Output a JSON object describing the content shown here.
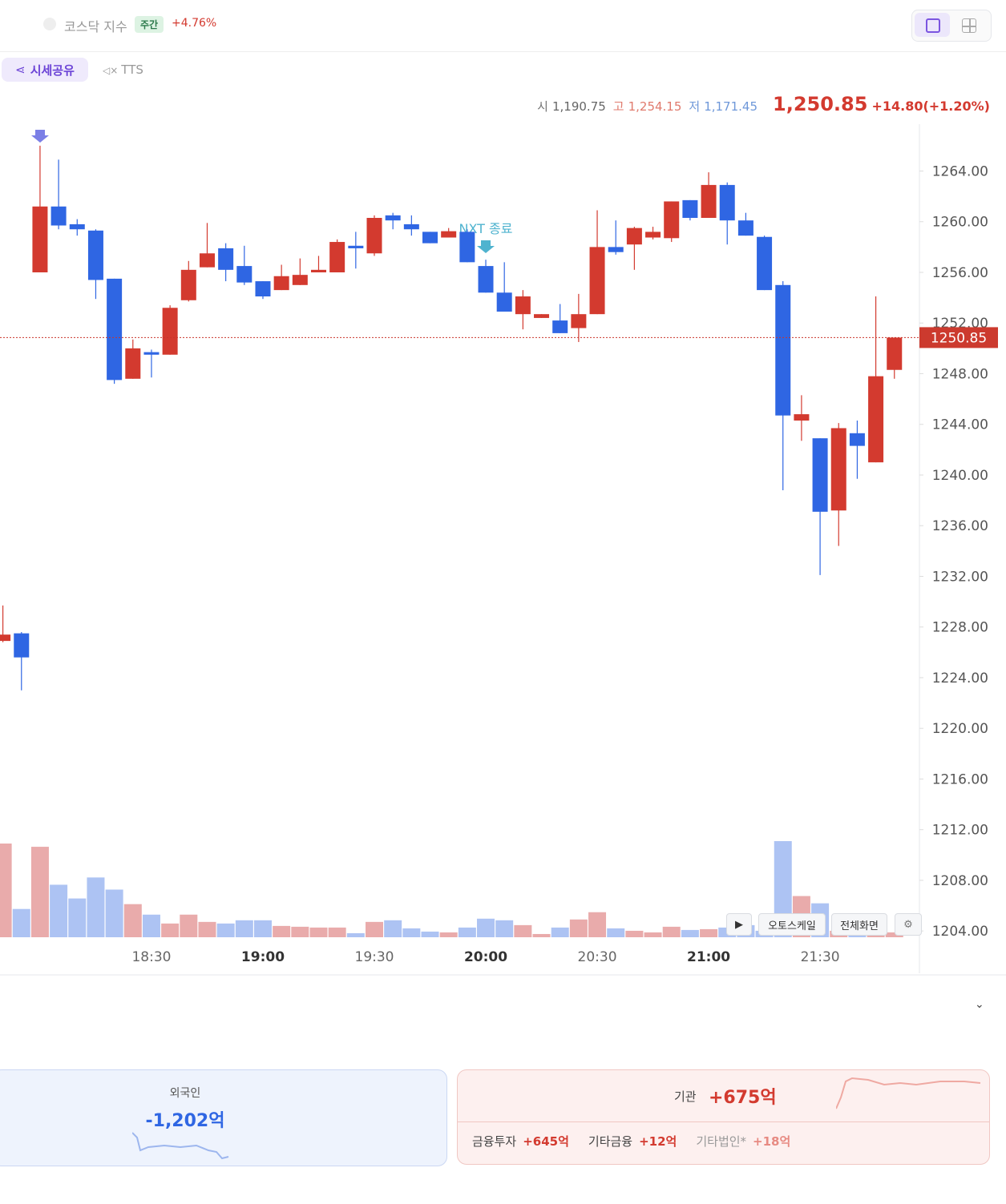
{
  "header": {
    "title": "코스닥 지수",
    "badge": "주간",
    "change": "+4.76%"
  },
  "toolbar": {
    "share": "시세공유",
    "tts": "TTS"
  },
  "quote": {
    "open_label": "시",
    "open": "1,190.75",
    "high_label": "고",
    "high": "1,254.15",
    "low_label": "저",
    "low": "1,171.45",
    "price": "1,250.85",
    "change": "+14.80(+1.20%)"
  },
  "chart_data": {
    "type": "candlestick",
    "categories": [
      null,
      null,
      null,
      null,
      null,
      null,
      null,
      null,
      "18:30",
      null,
      null,
      null,
      null,
      null,
      "19:00",
      null,
      null,
      null,
      null,
      null,
      "19:30",
      null,
      null,
      null,
      null,
      null,
      "20:00",
      null,
      null,
      null,
      null,
      null,
      "20:30",
      null,
      null,
      null,
      null,
      null,
      "21:00",
      null,
      null,
      null,
      null,
      null,
      "21:30",
      null,
      null,
      null,
      null
    ],
    "open": [
      1226.9,
      1227.5,
      1256.0,
      1261.2,
      1259.8,
      1259.3,
      1255.5,
      1247.6,
      1249.7,
      1249.5,
      1253.8,
      1256.4,
      1257.9,
      1256.5,
      1255.3,
      1254.6,
      1255.0,
      1256.0,
      1256.0,
      1258.1,
      1257.5,
      1260.5,
      1259.8,
      1259.2,
      1258.75,
      1259.2,
      1256.5,
      1254.4,
      1252.7,
      1252.4,
      1252.2,
      1251.6,
      1252.7,
      1258.0,
      1258.2,
      1258.75,
      1258.7,
      1261.7,
      1260.3,
      1262.9,
      1260.1,
      1258.8,
      1255.0,
      1244.3,
      1242.9,
      1237.2,
      1243.3,
      1241.0,
      1248.3
    ],
    "high": [
      1229.7,
      1227.6,
      1266.0,
      1264.9,
      1260.2,
      1259.4,
      1255.5,
      1250.7,
      1249.9,
      1253.4,
      1256.9,
      1259.9,
      1258.3,
      1258.1,
      1255.3,
      1256.6,
      1257.1,
      1257.3,
      1258.6,
      1259.2,
      1260.5,
      1260.7,
      1260.5,
      1259.2,
      1259.5,
      1259.4,
      1257.0,
      1256.8,
      1254.6,
      1252.7,
      1253.5,
      1254.3,
      1260.9,
      1260.1,
      1259.6,
      1259.6,
      1261.6,
      1261.7,
      1263.9,
      1263.1,
      1260.7,
      1258.9,
      1255.3,
      1246.3,
      1242.9,
      1244.1,
      1244.3,
      1254.1,
      1250.85
    ],
    "low": [
      1226.8,
      1223.0,
      1256.0,
      1259.4,
      1258.9,
      1253.9,
      1247.2,
      1247.6,
      1247.7,
      1249.5,
      1253.7,
      1256.4,
      1255.3,
      1255.0,
      1253.9,
      1254.6,
      1255.0,
      1256.0,
      1256.0,
      1256.3,
      1257.3,
      1259.4,
      1258.9,
      1258.3,
      1258.75,
      1256.8,
      1254.4,
      1252.9,
      1251.5,
      1252.4,
      1251.2,
      1250.5,
      1252.7,
      1257.4,
      1256.2,
      1258.6,
      1258.4,
      1260.1,
      1260.3,
      1258.2,
      1258.9,
      1254.6,
      1238.8,
      1242.7,
      1232.1,
      1234.4,
      1239.7,
      1241.0,
      1247.6
    ],
    "close": [
      1227.4,
      1225.6,
      1261.2,
      1259.7,
      1259.4,
      1255.4,
      1247.5,
      1250.0,
      1249.5,
      1253.2,
      1256.2,
      1257.5,
      1256.2,
      1255.2,
      1254.1,
      1255.7,
      1255.8,
      1256.2,
      1258.4,
      1257.9,
      1260.3,
      1260.1,
      1259.4,
      1258.3,
      1259.25,
      1256.8,
      1254.4,
      1252.9,
      1254.1,
      1252.7,
      1251.2,
      1252.7,
      1258.0,
      1257.6,
      1259.5,
      1259.2,
      1261.6,
      1260.3,
      1262.9,
      1260.1,
      1258.9,
      1254.6,
      1244.7,
      1244.8,
      1237.1,
      1243.7,
      1242.3,
      1247.8,
      1250.85
    ],
    "volume": [
      116,
      35,
      112,
      65,
      48,
      74,
      59,
      41,
      28,
      17,
      28,
      19,
      17,
      21,
      21,
      14,
      13,
      12,
      12,
      5,
      19,
      21,
      11,
      7,
      6,
      12,
      23,
      21,
      15,
      4,
      12,
      22,
      31,
      11,
      8,
      6,
      13,
      9,
      10,
      12,
      15,
      8,
      119,
      51,
      42,
      8,
      6,
      6,
      6
    ],
    "up_color": "#d33a2f",
    "down_color": "#2f66e3",
    "up_volume_color": "#e9abab",
    "down_volume_color": "#adc3f3",
    "current_price": 1250.85,
    "annotation": "NXT 종료",
    "ylim": [
      1203,
      1267.7
    ],
    "yticks": [
      {
        "value": 1204,
        "label": "1204.00"
      },
      {
        "value": 1208,
        "label": "1208.00"
      },
      {
        "value": 1212,
        "label": "1212.00"
      },
      {
        "value": 1216,
        "label": "1216.00"
      },
      {
        "value": 1220,
        "label": "1220.00"
      },
      {
        "value": 1224,
        "label": "1224.00"
      },
      {
        "value": 1228,
        "label": "1228.00"
      },
      {
        "value": 1232,
        "label": "1232.00"
      },
      {
        "value": 1236,
        "label": "1236.00"
      },
      {
        "value": 1240,
        "label": "1240.00"
      },
      {
        "value": 1244,
        "label": "1244.00"
      },
      {
        "value": 1248,
        "label": "1248.00"
      },
      {
        "value": 1252,
        "label": "1252.00"
      },
      {
        "value": 1256,
        "label": "1256.00"
      },
      {
        "value": 1260,
        "label": "1260.00"
      },
      {
        "value": 1264,
        "label": "1264.00"
      }
    ]
  },
  "controls": {
    "autoscale": "오토스케일",
    "fullscreen": "전체화면"
  },
  "investors": {
    "foreign_label": "외국인",
    "foreign": "-1,202억",
    "institution_label": "기관",
    "institution": "+675억",
    "details": [
      {
        "label": "금융투자",
        "value": "+645억"
      },
      {
        "label": "기타금융",
        "value": "+12억"
      },
      {
        "label": "기타법인*",
        "value": "+18억"
      }
    ]
  }
}
